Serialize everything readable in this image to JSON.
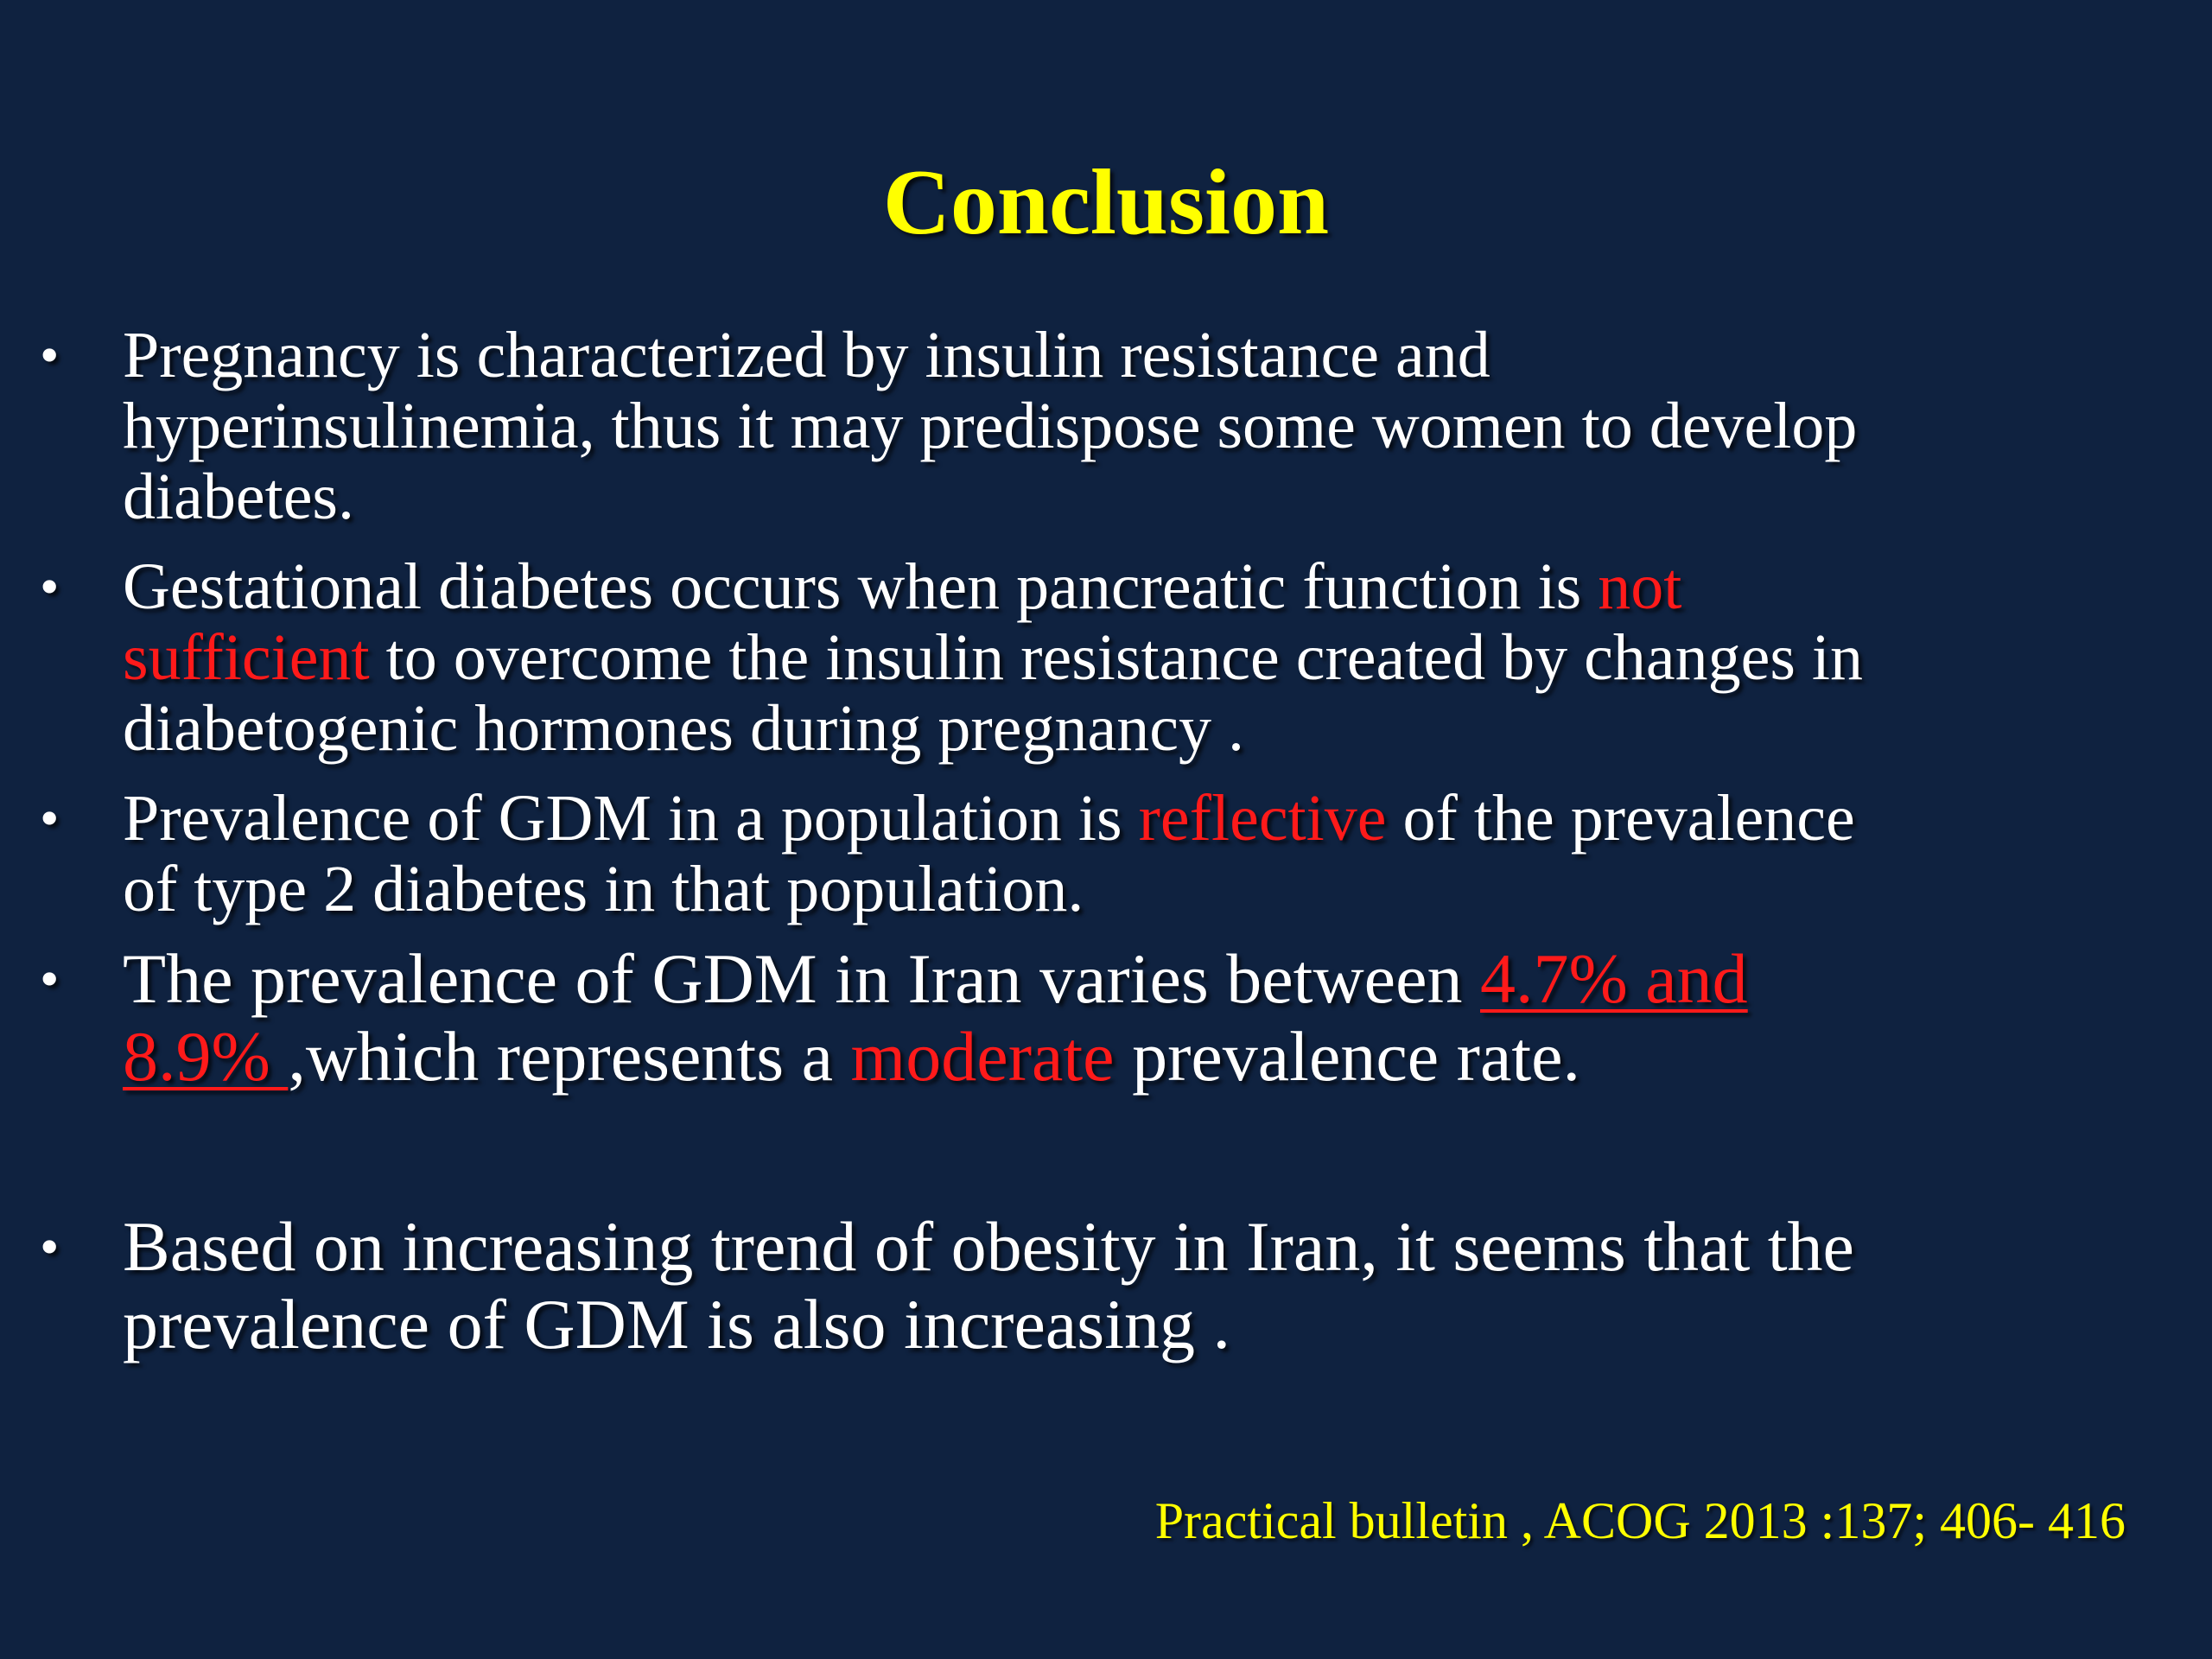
{
  "slide": {
    "title": "Conclusion",
    "bullet_symbol": "•",
    "bullets": [
      {
        "lines": [
          {
            "a": "Pregnancy is characterized by insulin resistance and"
          },
          {
            "a": "hyperinsulinemia, thus it may predispose some women to develop"
          },
          {
            "a": "diabetes."
          }
        ]
      },
      {
        "lines": [
          {
            "a": "Gestational diabetes occurs when pancreatic function is ",
            "b": "not"
          },
          {
            "a": "sufficient",
            "b": " to overcome the insulin resistance created by changes in"
          },
          {
            "a": "diabetogenic hormones during pregnancy ."
          }
        ]
      },
      {
        "lines": [
          {
            "a": "Prevalence of GDM in a population is ",
            "b": "reflective",
            "c": " of the prevalence"
          },
          {
            "a": "of type 2 diabetes in that population."
          }
        ]
      },
      {
        "lines": [
          {
            "a": "The prevalence of GDM in Iran varies between ",
            "b": "4.7% and"
          },
          {
            "a": "8.9% ",
            "b": ",which represents a ",
            "c": "moderate",
            "d": " prevalence rate."
          }
        ]
      },
      {
        "lines": [
          {
            "a": "Based on increasing trend of obesity in Iran, it seems that the"
          },
          {
            "a": "prevalence of GDM is also increasing ."
          }
        ]
      }
    ],
    "citation": "Practical bulletin , ACOG 2013 :137; 406- 416"
  },
  "colors": {
    "background": "#0f2240",
    "title": "#ffff00",
    "body_text": "#ffffff",
    "emphasis": "#ff1a1a",
    "citation": "#ffff00"
  }
}
